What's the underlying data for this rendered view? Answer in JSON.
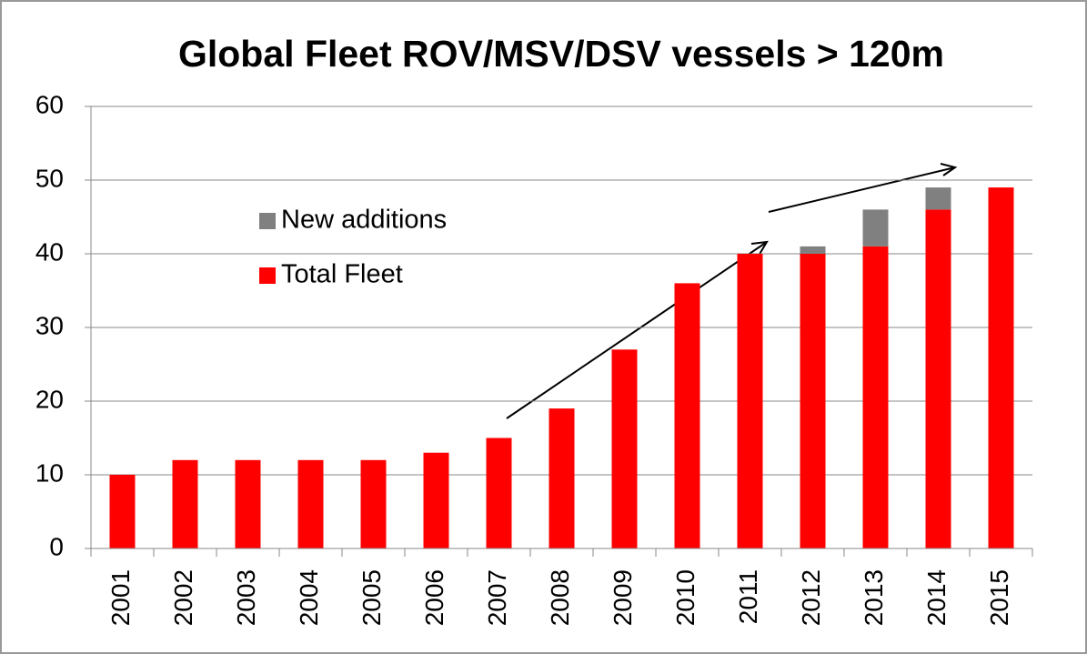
{
  "chart_data": {
    "type": "stacked-bar",
    "title": "Global Fleet ROV/MSV/DSV vessels > 120m",
    "categories": [
      "2001",
      "2002",
      "2003",
      "2004",
      "2005",
      "2006",
      "2007",
      "2008",
      "2009",
      "2010",
      "2011",
      "2012",
      "2013",
      "2014",
      "2015"
    ],
    "series": [
      {
        "name": "New additions",
        "color": "#808080",
        "values": [
          0,
          0,
          0,
          0,
          0,
          0,
          0,
          0,
          0,
          0,
          0,
          1,
          5,
          3,
          0
        ]
      },
      {
        "name": "Total Fleet",
        "color": "#ff0000",
        "values": [
          10,
          12,
          12,
          12,
          12,
          13,
          15,
          19,
          27,
          36,
          40,
          40,
          41,
          46,
          49
        ]
      }
    ],
    "ylim": [
      0,
      60
    ],
    "yticks": [
      0,
      10,
      20,
      30,
      40,
      50,
      60
    ],
    "grid": true
  }
}
